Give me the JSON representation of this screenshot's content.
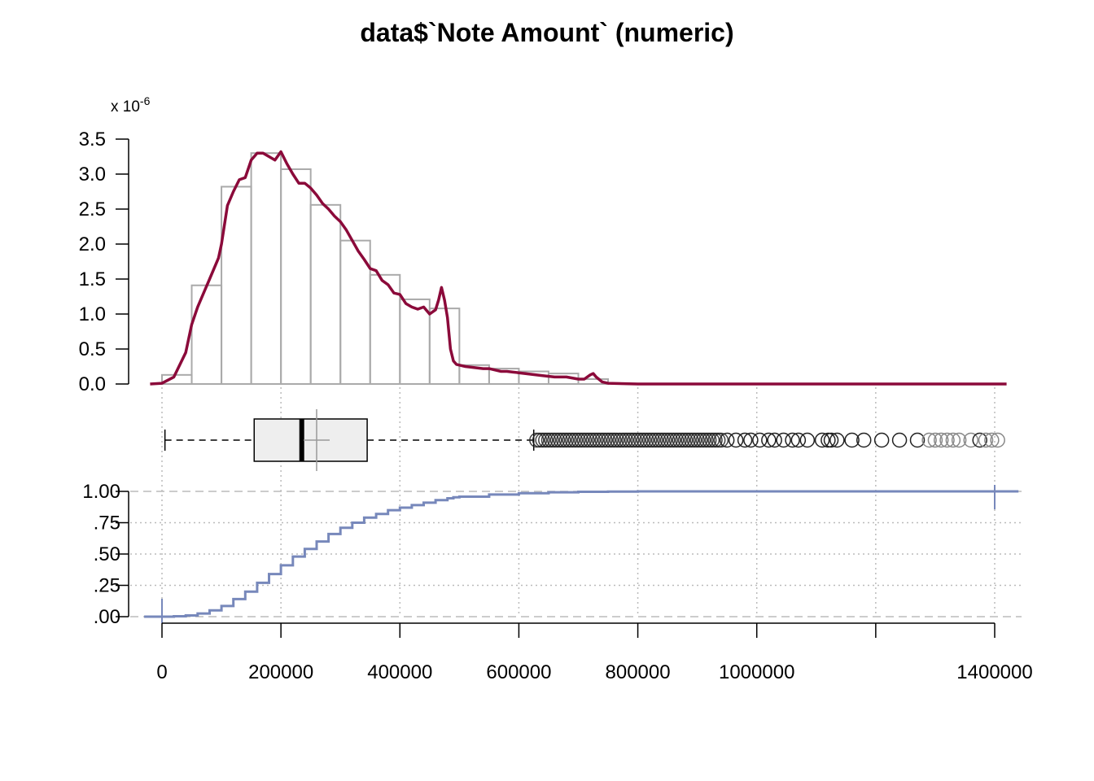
{
  "title": "data$`Note Amount` (numeric)",
  "colors": {
    "density": "#8B0A3A",
    "hist_stroke": "#aaaaaa",
    "ecdf": "#7788bb",
    "grid": "#bbbbbb",
    "box_fill": "#eeeeee",
    "outlier_dark": "#222222",
    "outlier_light": "#888888"
  },
  "chart_data": [
    {
      "type": "histogram",
      "scale_label_prefix": "x 10",
      "scale_label_exponent": "-6",
      "ylim": [
        0,
        3.5
      ],
      "y_ticks": [
        "0.0",
        "0.5",
        "1.0",
        "1.5",
        "2.0",
        "2.5",
        "3.0",
        "3.5"
      ],
      "bins": [
        {
          "from": 0,
          "to": 50000,
          "density": 0.13
        },
        {
          "from": 50000,
          "to": 100000,
          "density": 1.41
        },
        {
          "from": 100000,
          "to": 150000,
          "density": 2.82
        },
        {
          "from": 150000,
          "to": 200000,
          "density": 3.3
        },
        {
          "from": 200000,
          "to": 250000,
          "density": 3.07
        },
        {
          "from": 250000,
          "to": 300000,
          "density": 2.56
        },
        {
          "from": 300000,
          "to": 350000,
          "density": 2.05
        },
        {
          "from": 350000,
          "to": 400000,
          "density": 1.56
        },
        {
          "from": 400000,
          "to": 450000,
          "density": 1.21
        },
        {
          "from": 450000,
          "to": 500000,
          "density": 1.08
        },
        {
          "from": 500000,
          "to": 550000,
          "density": 0.27
        },
        {
          "from": 550000,
          "to": 600000,
          "density": 0.22
        },
        {
          "from": 600000,
          "to": 650000,
          "density": 0.18
        },
        {
          "from": 650000,
          "to": 700000,
          "density": 0.15
        },
        {
          "from": 700000,
          "to": 750000,
          "density": 0.07
        }
      ],
      "density_curve": {
        "x": [
          -20000,
          0,
          20000,
          40000,
          50000,
          60000,
          80000,
          95000,
          100000,
          110000,
          120000,
          130000,
          140000,
          150000,
          160000,
          170000,
          180000,
          190000,
          200000,
          210000,
          220000,
          230000,
          240000,
          250000,
          260000,
          270000,
          280000,
          290000,
          300000,
          310000,
          320000,
          330000,
          340000,
          350000,
          360000,
          370000,
          380000,
          390000,
          400000,
          410000,
          420000,
          430000,
          440000,
          450000,
          460000,
          465000,
          470000,
          475000,
          480000,
          485000,
          490000,
          495000,
          500000,
          510000,
          520000,
          530000,
          540000,
          550000,
          560000,
          570000,
          580000,
          590000,
          600000,
          620000,
          640000,
          660000,
          680000,
          700000,
          710000,
          720000,
          725000,
          730000,
          740000,
          750000,
          800000,
          1000000,
          1200000,
          1420000
        ],
        "y": [
          0.0,
          0.01,
          0.1,
          0.45,
          0.85,
          1.1,
          1.5,
          1.8,
          2.0,
          2.55,
          2.75,
          2.92,
          2.95,
          3.2,
          3.3,
          3.3,
          3.25,
          3.2,
          3.32,
          3.15,
          3.0,
          2.87,
          2.87,
          2.8,
          2.7,
          2.58,
          2.5,
          2.4,
          2.32,
          2.2,
          2.05,
          1.9,
          1.78,
          1.65,
          1.62,
          1.48,
          1.42,
          1.3,
          1.28,
          1.15,
          1.1,
          1.07,
          1.1,
          1.0,
          1.06,
          1.2,
          1.38,
          1.2,
          0.95,
          0.5,
          0.33,
          0.28,
          0.27,
          0.25,
          0.24,
          0.23,
          0.22,
          0.22,
          0.2,
          0.18,
          0.18,
          0.17,
          0.16,
          0.14,
          0.12,
          0.1,
          0.1,
          0.07,
          0.07,
          0.13,
          0.15,
          0.1,
          0.03,
          0.01,
          0.0,
          0.0,
          0.0,
          0.0
        ]
      }
    },
    {
      "type": "boxplot",
      "whisker_low": 5000,
      "q1": 155000,
      "median": 235000,
      "mean": 260000,
      "q3": 345000,
      "whisker_high": 625000,
      "outliers_dense_range": [
        630000,
        940000
      ],
      "outliers_sparse": [
        950000,
        965000,
        980000,
        990000,
        1005000,
        1020000,
        1030000,
        1045000,
        1060000,
        1070000,
        1085000,
        1110000,
        1120000,
        1125000,
        1135000,
        1160000,
        1180000,
        1210000,
        1240000,
        1270000,
        1290000,
        1300000,
        1310000,
        1320000,
        1330000,
        1340000,
        1360000,
        1375000,
        1385000,
        1395000,
        1405000
      ]
    },
    {
      "type": "ecdf",
      "ylim": [
        0,
        1
      ],
      "y_ticks": [
        ".00",
        ".25",
        ".50",
        ".75",
        "1.00"
      ],
      "x": [
        0,
        20000,
        40000,
        60000,
        80000,
        100000,
        120000,
        140000,
        160000,
        180000,
        200000,
        220000,
        240000,
        260000,
        280000,
        300000,
        320000,
        340000,
        360000,
        380000,
        400000,
        420000,
        440000,
        460000,
        480000,
        490000,
        500000,
        550000,
        600000,
        650000,
        700000,
        750000,
        800000,
        1000000,
        1400000
      ],
      "y": [
        0.0,
        0.003,
        0.01,
        0.025,
        0.05,
        0.085,
        0.14,
        0.2,
        0.27,
        0.34,
        0.41,
        0.48,
        0.54,
        0.6,
        0.66,
        0.71,
        0.75,
        0.79,
        0.82,
        0.85,
        0.87,
        0.89,
        0.91,
        0.93,
        0.945,
        0.953,
        0.958,
        0.975,
        0.986,
        0.993,
        0.997,
        0.999,
        1.0,
        1.0,
        1.0
      ]
    }
  ],
  "x_axis": {
    "ticks": [
      0,
      200000,
      400000,
      600000,
      800000,
      1000000,
      1200000,
      1400000
    ],
    "tick_labels": [
      "0",
      "200000",
      "400000",
      "600000",
      "800000",
      "1000000",
      "",
      "1400000"
    ],
    "range": [
      -30000,
      1440000
    ]
  }
}
